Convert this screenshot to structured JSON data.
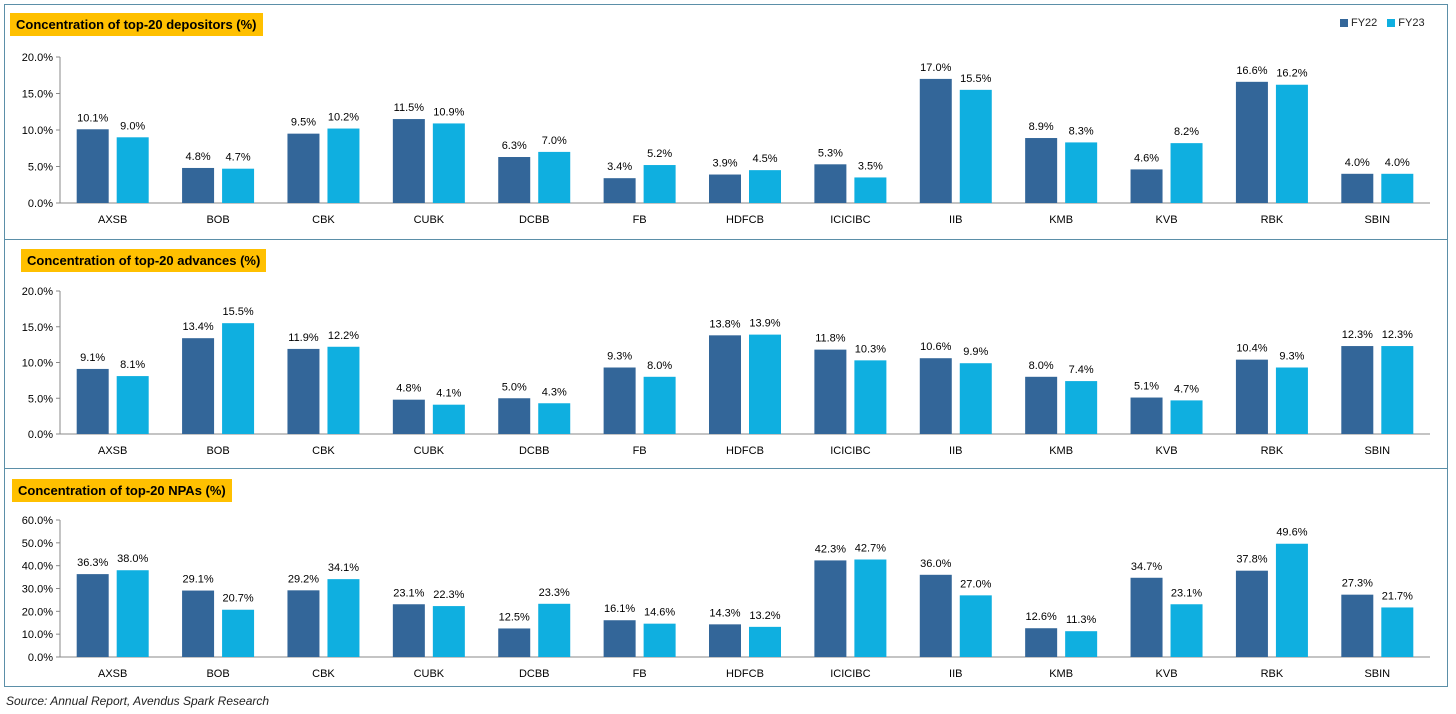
{
  "legend": {
    "fy22": {
      "label": "FY22",
      "color": "#336699"
    },
    "fy23": {
      "label": "FY23",
      "color": "#0fafe0"
    }
  },
  "source": "Source: Annual Report, Avendus Spark Research",
  "chart_data": [
    {
      "type": "bar",
      "title": "Concentration of top-20 depositors (%)",
      "categories": [
        "AXSB",
        "BOB",
        "CBK",
        "CUBK",
        "DCBB",
        "FB",
        "HDFCB",
        "ICICIBC",
        "IIB",
        "KMB",
        "KVB",
        "RBK",
        "SBIN"
      ],
      "series": [
        {
          "name": "FY22",
          "values": [
            10.1,
            4.8,
            9.5,
            11.5,
            6.3,
            3.4,
            3.9,
            5.3,
            17.0,
            8.9,
            4.6,
            16.6,
            4.0
          ]
        },
        {
          "name": "FY23",
          "values": [
            9.0,
            4.7,
            10.2,
            10.9,
            7.0,
            5.2,
            4.5,
            3.5,
            15.5,
            8.3,
            8.2,
            16.2,
            4.0
          ]
        }
      ],
      "ylim": [
        0,
        20
      ],
      "yticks": [
        0,
        5,
        10,
        15,
        20
      ],
      "xlabel": "",
      "ylabel": ""
    },
    {
      "type": "bar",
      "title": "Concentration of top-20 advances (%)",
      "categories": [
        "AXSB",
        "BOB",
        "CBK",
        "CUBK",
        "DCBB",
        "FB",
        "HDFCB",
        "ICICIBC",
        "IIB",
        "KMB",
        "KVB",
        "RBK",
        "SBIN"
      ],
      "series": [
        {
          "name": "FY22",
          "values": [
            9.1,
            13.4,
            11.9,
            4.8,
            5.0,
            9.3,
            13.8,
            11.8,
            10.6,
            8.0,
            5.1,
            10.4,
            12.3
          ]
        },
        {
          "name": "FY23",
          "values": [
            8.1,
            15.5,
            12.2,
            4.1,
            4.3,
            8.0,
            13.9,
            10.3,
            9.9,
            7.4,
            4.7,
            9.3,
            12.3
          ]
        }
      ],
      "ylim": [
        0,
        20
      ],
      "yticks": [
        0,
        5,
        10,
        15,
        20
      ],
      "xlabel": "",
      "ylabel": ""
    },
    {
      "type": "bar",
      "title": "Concentration of top-20 NPAs (%)",
      "categories": [
        "AXSB",
        "BOB",
        "CBK",
        "CUBK",
        "DCBB",
        "FB",
        "HDFCB",
        "ICICIBC",
        "IIB",
        "KMB",
        "KVB",
        "RBK",
        "SBIN"
      ],
      "series": [
        {
          "name": "FY22",
          "values": [
            36.3,
            29.1,
            29.2,
            23.1,
            12.5,
            16.1,
            14.3,
            42.3,
            36.0,
            12.6,
            34.7,
            37.8,
            27.3
          ]
        },
        {
          "name": "FY23",
          "values": [
            38.0,
            20.7,
            34.1,
            22.3,
            23.3,
            14.6,
            13.2,
            42.7,
            27.0,
            11.3,
            23.1,
            49.6,
            21.7
          ]
        }
      ],
      "ylim": [
        0,
        60
      ],
      "yticks": [
        0,
        10,
        20,
        30,
        40,
        50,
        60
      ],
      "xlabel": "",
      "ylabel": ""
    }
  ]
}
